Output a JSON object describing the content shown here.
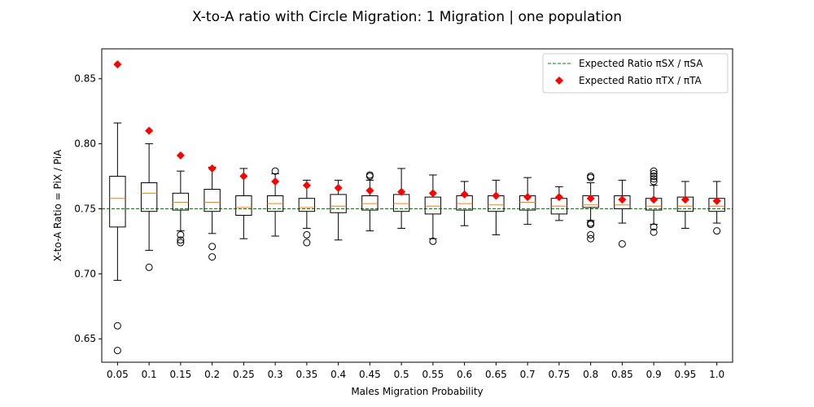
{
  "chart_data": {
    "type": "box",
    "title": "X-to-A ratio with Circle Migration: 1 Migration | one population",
    "xlabel": "Males Migration Probability",
    "ylabel": "X-to-A Ratio = PiX / PiA",
    "ylim": [
      0.632,
      0.873
    ],
    "yticks": [
      "0.65",
      "0.70",
      "0.75",
      "0.80",
      "0.85"
    ],
    "categories": [
      "0.05",
      "0.1",
      "0.15",
      "0.2",
      "0.25",
      "0.3",
      "0.35",
      "0.4",
      "0.45",
      "0.5",
      "0.55",
      "0.6",
      "0.65",
      "0.7",
      "0.75",
      "0.8",
      "0.85",
      "0.9",
      "0.95",
      "1.0"
    ],
    "boxes": [
      {
        "whisker_low": 0.695,
        "q1": 0.736,
        "median": 0.758,
        "q3": 0.775,
        "whisker_high": 0.816,
        "outliers": [
          0.66,
          0.641
        ]
      },
      {
        "whisker_low": 0.718,
        "q1": 0.748,
        "median": 0.762,
        "q3": 0.77,
        "whisker_high": 0.8,
        "outliers": [
          0.705
        ]
      },
      {
        "whisker_low": 0.733,
        "q1": 0.749,
        "median": 0.755,
        "q3": 0.762,
        "whisker_high": 0.779,
        "outliers": [
          0.73,
          0.726,
          0.724
        ]
      },
      {
        "whisker_low": 0.731,
        "q1": 0.748,
        "median": 0.755,
        "q3": 0.765,
        "whisker_high": 0.782,
        "outliers": [
          0.721,
          0.713
        ]
      },
      {
        "whisker_low": 0.727,
        "q1": 0.745,
        "median": 0.751,
        "q3": 0.76,
        "whisker_high": 0.781,
        "outliers": []
      },
      {
        "whisker_low": 0.729,
        "q1": 0.748,
        "median": 0.754,
        "q3": 0.76,
        "whisker_high": 0.777,
        "outliers": [
          0.779
        ]
      },
      {
        "whisker_low": 0.735,
        "q1": 0.748,
        "median": 0.751,
        "q3": 0.758,
        "whisker_high": 0.772,
        "outliers": [
          0.73,
          0.724
        ]
      },
      {
        "whisker_low": 0.726,
        "q1": 0.747,
        "median": 0.752,
        "q3": 0.761,
        "whisker_high": 0.772,
        "outliers": []
      },
      {
        "whisker_low": 0.733,
        "q1": 0.749,
        "median": 0.754,
        "q3": 0.76,
        "whisker_high": 0.772,
        "outliers": [
          0.776,
          0.775
        ]
      },
      {
        "whisker_low": 0.735,
        "q1": 0.748,
        "median": 0.754,
        "q3": 0.761,
        "whisker_high": 0.781,
        "outliers": []
      },
      {
        "whisker_low": 0.727,
        "q1": 0.746,
        "median": 0.752,
        "q3": 0.759,
        "whisker_high": 0.776,
        "outliers": [
          0.725
        ]
      },
      {
        "whisker_low": 0.737,
        "q1": 0.749,
        "median": 0.754,
        "q3": 0.76,
        "whisker_high": 0.771,
        "outliers": []
      },
      {
        "whisker_low": 0.73,
        "q1": 0.748,
        "median": 0.753,
        "q3": 0.76,
        "whisker_high": 0.772,
        "outliers": []
      },
      {
        "whisker_low": 0.738,
        "q1": 0.749,
        "median": 0.755,
        "q3": 0.76,
        "whisker_high": 0.774,
        "outliers": []
      },
      {
        "whisker_low": 0.741,
        "q1": 0.746,
        "median": 0.752,
        "q3": 0.758,
        "whisker_high": 0.767,
        "outliers": []
      },
      {
        "whisker_low": 0.741,
        "q1": 0.751,
        "median": 0.753,
        "q3": 0.76,
        "whisker_high": 0.77,
        "outliers": [
          0.775,
          0.774,
          0.739,
          0.738,
          0.73,
          0.727
        ]
      },
      {
        "whisker_low": 0.739,
        "q1": 0.75,
        "median": 0.753,
        "q3": 0.76,
        "whisker_high": 0.772,
        "outliers": [
          0.723
        ]
      },
      {
        "whisker_low": 0.738,
        "q1": 0.749,
        "median": 0.752,
        "q3": 0.758,
        "whisker_high": 0.768,
        "outliers": [
          0.779,
          0.777,
          0.775,
          0.773,
          0.771,
          0.736,
          0.732
        ]
      },
      {
        "whisker_low": 0.735,
        "q1": 0.748,
        "median": 0.752,
        "q3": 0.759,
        "whisker_high": 0.771,
        "outliers": []
      },
      {
        "whisker_low": 0.739,
        "q1": 0.748,
        "median": 0.752,
        "q3": 0.758,
        "whisker_high": 0.771,
        "outliers": [
          0.733
        ]
      }
    ],
    "expected_ratio_line": {
      "name": "Expected Ratio πSX / πSA",
      "value": 0.75,
      "color": "#008000",
      "style": "dashed"
    },
    "expected_ratio_points": {
      "name": "Expected Ratio πTX / πTA",
      "color": "#ff0000",
      "marker": "diamond",
      "values": [
        0.861,
        0.81,
        0.791,
        0.781,
        0.775,
        0.771,
        0.768,
        0.766,
        0.764,
        0.763,
        0.762,
        0.761,
        0.76,
        0.759,
        0.759,
        0.758,
        0.757,
        0.757,
        0.757,
        0.756
      ]
    },
    "box_color": "#000000",
    "median_color": "#ff7f0e",
    "grid": false,
    "legend_position": "top-right"
  }
}
